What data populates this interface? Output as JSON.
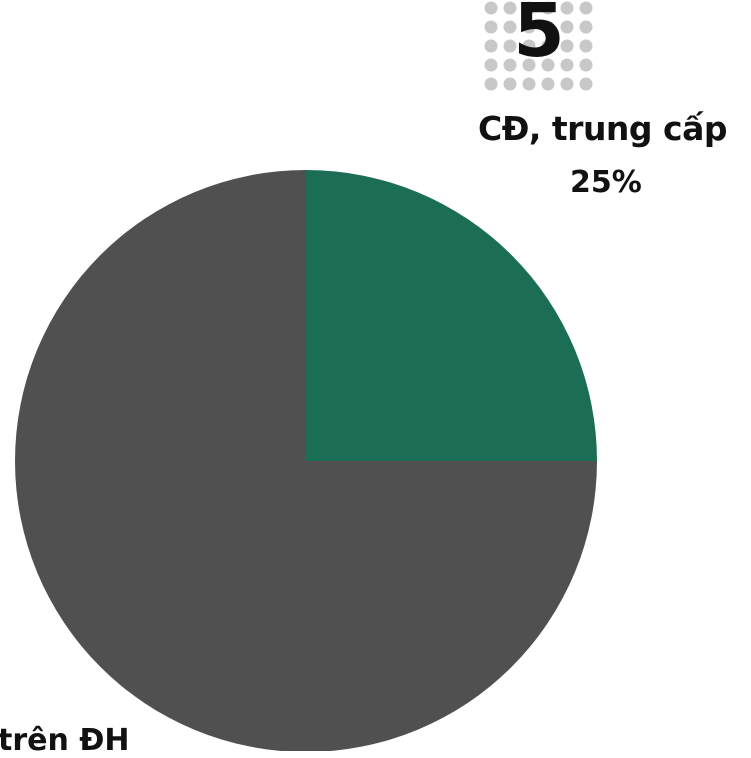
{
  "chart_data": {
    "type": "pie",
    "slices": [
      {
        "label": "CĐ, trung cấp",
        "value": 25,
        "value_label": "25%",
        "color": "#1b6e55"
      },
      {
        "label": "trên ĐH",
        "value": 75,
        "color": "#505050"
      }
    ],
    "badge": {
      "number": "5"
    },
    "colors": {
      "badge_dots": "#c8c8c8",
      "text": "#111111"
    }
  }
}
